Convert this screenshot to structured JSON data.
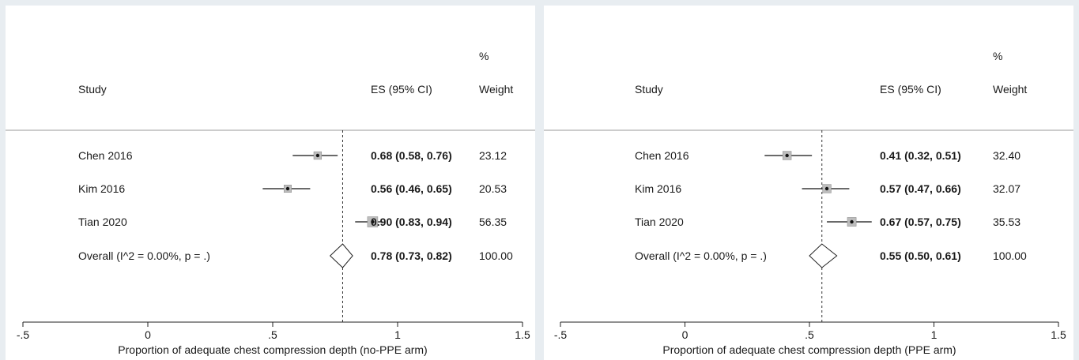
{
  "chart_data": [
    {
      "type": "forest",
      "header": {
        "percent": "%",
        "study": "Study",
        "es": "ES (95% CI)",
        "weight": "Weight"
      },
      "xlabel": "Proportion of adequate chest compression depth (no-PPE arm)",
      "xlim": [
        -0.5,
        1.5
      ],
      "ticks": [
        -0.5,
        0,
        0.5,
        1,
        1.5
      ],
      "tick_labels": [
        "-.5",
        "0",
        ".5",
        "1",
        "1.5"
      ],
      "reference_line": 0.78,
      "studies": [
        {
          "name": "Chen 2016",
          "es": 0.68,
          "lo": 0.58,
          "hi": 0.76,
          "weight": 23.12,
          "es_text": "0.68 (0.58, 0.76)",
          "weight_text": "23.12"
        },
        {
          "name": "Kim 2016",
          "es": 0.56,
          "lo": 0.46,
          "hi": 0.65,
          "weight": 20.53,
          "es_text": "0.56 (0.46, 0.65)",
          "weight_text": "20.53"
        },
        {
          "name": "Tian 2020",
          "es": 0.9,
          "lo": 0.83,
          "hi": 0.94,
          "weight": 56.35,
          "es_text": "0.90 (0.83, 0.94)",
          "weight_text": "56.35"
        }
      ],
      "overall": {
        "name": "Overall  (I^2 = 0.00%, p = .)",
        "es": 0.78,
        "lo": 0.73,
        "hi": 0.82,
        "es_text": "0.78 (0.73, 0.82)",
        "weight_text": "100.00"
      }
    },
    {
      "type": "forest",
      "header": {
        "percent": "%",
        "study": "Study",
        "es": "ES (95% CI)",
        "weight": "Weight"
      },
      "xlabel": "Proportion of adequate chest compression depth (PPE arm)",
      "xlim": [
        -0.5,
        1.5
      ],
      "ticks": [
        -0.5,
        0,
        0.5,
        1,
        1.5
      ],
      "tick_labels": [
        "-.5",
        "0",
        ".5",
        "1",
        "1.5"
      ],
      "reference_line": 0.55,
      "studies": [
        {
          "name": "Chen 2016",
          "es": 0.41,
          "lo": 0.32,
          "hi": 0.51,
          "weight": 32.4,
          "es_text": "0.41 (0.32, 0.51)",
          "weight_text": "32.40"
        },
        {
          "name": "Kim 2016",
          "es": 0.57,
          "lo": 0.47,
          "hi": 0.66,
          "weight": 32.07,
          "es_text": "0.57 (0.47, 0.66)",
          "weight_text": "32.07"
        },
        {
          "name": "Tian 2020",
          "es": 0.67,
          "lo": 0.57,
          "hi": 0.75,
          "weight": 35.53,
          "es_text": "0.67 (0.57, 0.75)",
          "weight_text": "35.53"
        }
      ],
      "overall": {
        "name": "Overall  (I^2 = 0.00%, p = .)",
        "es": 0.55,
        "lo": 0.5,
        "hi": 0.61,
        "es_text": "0.55 (0.50, 0.61)",
        "weight_text": "100.00"
      }
    }
  ]
}
